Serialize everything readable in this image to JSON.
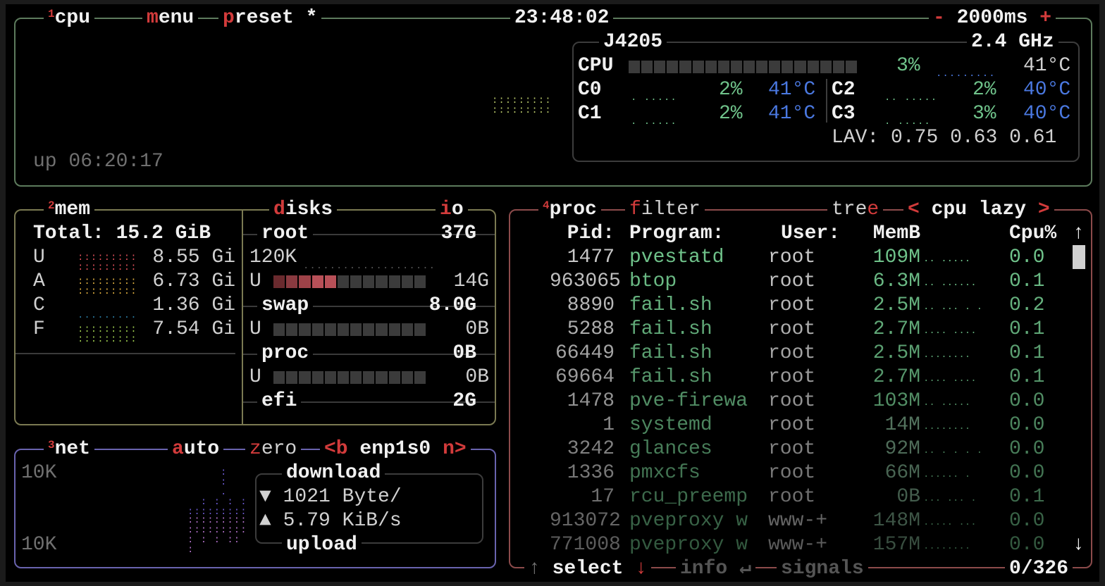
{
  "colors": {
    "cpu_border": "#5d7b5d",
    "mem_border": "#7b7a52",
    "net_border": "#6963ae",
    "proc_border": "#8c4b4b",
    "hotkey": "#d23b3b",
    "value_green": "#6fc28a",
    "temp_blue": "#4a78e0"
  },
  "cpu": {
    "num": "1",
    "title": "cpu",
    "menu_hk": "m",
    "menu_rest": "enu",
    "preset_hk": "p",
    "preset_rest": "reset *",
    "clock": "23:48:02",
    "minus": "-",
    "interval": "2000ms",
    "plus": "+",
    "uptime": "up 06:20:17",
    "model": "J4205",
    "freq": "2.4 GHz",
    "total": {
      "label": "CPU",
      "percent": "3%",
      "temp": "41°C",
      "usage_fraction": 0.03
    },
    "cores": [
      {
        "label": "C0",
        "percent": "2%",
        "temp": "41°C"
      },
      {
        "label": "C1",
        "percent": "2%",
        "temp": "41°C"
      },
      {
        "label": "C2",
        "percent": "2%",
        "temp": "40°C"
      },
      {
        "label": "C3",
        "percent": "3%",
        "temp": "40°C"
      }
    ],
    "lav_label": "LAV:",
    "lav": [
      "0.75",
      "0.63",
      "0.61"
    ]
  },
  "mem": {
    "num": "2",
    "title": "mem",
    "total": "Total: 15.2 GiB",
    "rows": [
      {
        "label": "U",
        "value": "8.55 Gi",
        "color": "#e0505a"
      },
      {
        "label": "A",
        "value": "6.73 Gi",
        "color": "#e0b040"
      },
      {
        "label": "C",
        "value": "1.36 Gi",
        "color": "#2a7aa0"
      },
      {
        "label": "F",
        "value": "7.54 Gi",
        "color": "#a0d050"
      }
    ]
  },
  "disks": {
    "title_hk": "d",
    "title_rest": "isks",
    "io_hk": "i",
    "io_rest": "o",
    "items": [
      {
        "name": "root",
        "size": "37G",
        "io": "120K",
        "used_label": "U",
        "used": "14G",
        "used_fraction": 0.38
      },
      {
        "name": "swap",
        "size": "8.0G",
        "used_label": "U",
        "used": "0B",
        "used_fraction": 0
      },
      {
        "name": "proc",
        "size": "0B",
        "used_label": "U",
        "used": "0B",
        "used_fraction": 0
      },
      {
        "name": "efi",
        "size": "2G"
      }
    ]
  },
  "net": {
    "num": "3",
    "title": "net",
    "auto_hk": "a",
    "auto_rest": "uto",
    "zero_hk": "z",
    "zero_rest": "ero",
    "prev": "<b",
    "iface": "enp1s0",
    "next": "n>",
    "scale_top": "10K",
    "scale_bottom": "10K",
    "download_label": "download",
    "download": "1021 Byte/",
    "upload": "5.79 KiB/s",
    "upload_label": "upload",
    "down_icon": "▼",
    "up_icon": "▲"
  },
  "proc": {
    "num": "4",
    "title": "proc",
    "filter_hk": "f",
    "filter_rest": "ilter",
    "tree_rest": "tre",
    "tree_hk": "e",
    "sort_prev": "<",
    "sort": "cpu lazy",
    "sort_next": ">",
    "headers": {
      "pid": "Pid:",
      "program": "Program:",
      "user": "User:",
      "mem": "MemB",
      "cpu": "Cpu%"
    },
    "rows": [
      {
        "pid": "1477",
        "program": "pvestatd",
        "user": "root",
        "mem": "109M",
        "cpu": "0.0"
      },
      {
        "pid": "963065",
        "program": "btop",
        "user": "root",
        "mem": "6.3M",
        "cpu": "0.1"
      },
      {
        "pid": "8890",
        "program": "fail.sh",
        "user": "root",
        "mem": "2.5M",
        "cpu": "0.2"
      },
      {
        "pid": "5288",
        "program": "fail.sh",
        "user": "root",
        "mem": "2.7M",
        "cpu": "0.1"
      },
      {
        "pid": "66449",
        "program": "fail.sh",
        "user": "root",
        "mem": "2.5M",
        "cpu": "0.1"
      },
      {
        "pid": "69664",
        "program": "fail.sh",
        "user": "root",
        "mem": "2.7M",
        "cpu": "0.1"
      },
      {
        "pid": "1478",
        "program": "pve-firewa",
        "user": "root",
        "mem": "103M",
        "cpu": "0.0"
      },
      {
        "pid": "1",
        "program": "systemd",
        "user": "root",
        "mem": "14M",
        "cpu": "0.0"
      },
      {
        "pid": "3242",
        "program": "glances",
        "user": "root",
        "mem": "92M",
        "cpu": "0.0"
      },
      {
        "pid": "1336",
        "program": "pmxcfs",
        "user": "root",
        "mem": "66M",
        "cpu": "0.0"
      },
      {
        "pid": "17",
        "program": "rcu_preemp",
        "user": "root",
        "mem": "0B",
        "cpu": "0.1"
      },
      {
        "pid": "913072",
        "program": "pveproxy w",
        "user": "www-+",
        "mem": "148M",
        "cpu": "0.0"
      },
      {
        "pid": "771008",
        "program": "pveproxy w",
        "user": "www-+",
        "mem": "157M",
        "cpu": "0.0"
      }
    ],
    "footer": {
      "up": "↑",
      "select": "select",
      "down": "↓",
      "info": "info",
      "enter": "↵",
      "signals": "signals",
      "count": "0/326"
    },
    "scroll_up": "↑",
    "scroll_down": "↓"
  }
}
